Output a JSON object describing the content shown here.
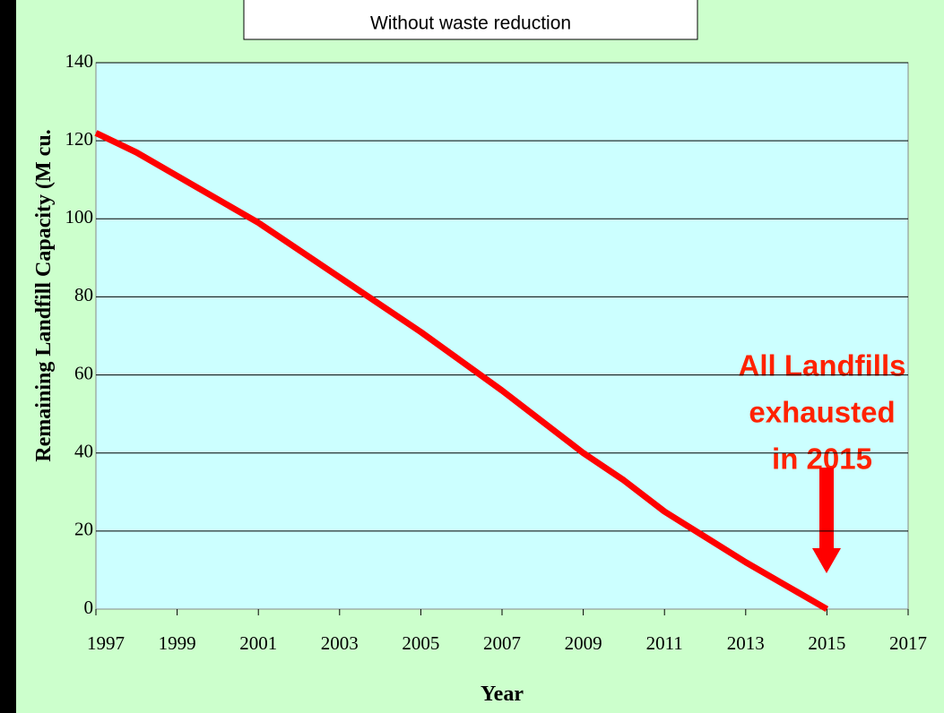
{
  "chart_data": {
    "type": "line",
    "subtitle": "Without waste reduction",
    "y_label": "Remaining Landfill Capacity (M cu.",
    "x_label": "Year",
    "annotation": [
      "All Landfills",
      "exhausted",
      "in 2015"
    ],
    "x": [
      1997,
      1998,
      1999,
      2000,
      2001,
      2002,
      2003,
      2004,
      2005,
      2006,
      2007,
      2008,
      2009,
      2010,
      2011,
      2012,
      2013,
      2014,
      2015
    ],
    "series": [
      {
        "color": "#ff0000",
        "values": [
          122,
          117,
          111,
          105,
          99,
          92,
          85,
          78,
          71,
          63.5,
          56,
          48,
          40,
          33,
          25,
          18.5,
          12,
          6,
          0
        ]
      }
    ],
    "xlim": [
      1997,
      2017
    ],
    "xticks": [
      1997,
      1999,
      2001,
      2003,
      2005,
      2007,
      2009,
      2011,
      2013,
      2015,
      2017
    ],
    "ylim": [
      0,
      140
    ],
    "yticks": [
      0,
      20,
      40,
      60,
      80,
      100,
      120,
      140
    ],
    "grid": true
  }
}
